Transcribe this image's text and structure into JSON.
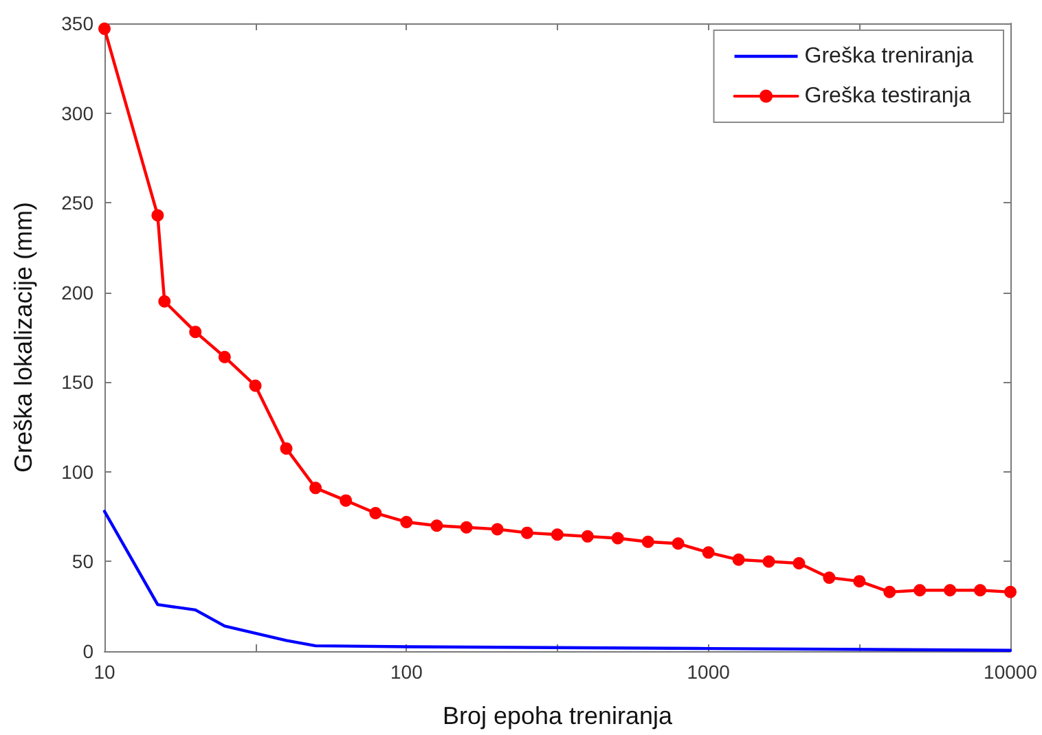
{
  "chart_data": {
    "type": "line",
    "xlabel": "Broj epoha treniranja",
    "ylabel": "Greška lokalizacije (mm)",
    "log": "x",
    "line_style": "solid",
    "legend": "top right",
    "xlim": [
      10,
      10000
    ],
    "xticks": [
      10,
      {
        "value": 31.6,
        "label": null
      },
      100,
      {
        "value": 316,
        "label": null
      },
      1000,
      {
        "value": 3162,
        "label": null
      },
      10000
    ],
    "ylim": [
      0,
      350
    ],
    "yticks": [
      0,
      50,
      100,
      150,
      200,
      250,
      300,
      350
    ],
    "series": [
      {
        "name": "Greška treniranja",
        "color": "#0000ff",
        "marker": "none",
        "x": [
          10,
          15,
          20,
          25,
          31.6,
          40,
          50,
          100,
          1000,
          10000
        ],
        "values": [
          78,
          26,
          23,
          14,
          10,
          6,
          3,
          2.5,
          1.5,
          0.5
        ]
      },
      {
        "name": "Greška testiranja",
        "color": "#ff0000",
        "marker": "circle",
        "x": [
          10,
          15,
          15.8,
          20,
          25,
          31.6,
          40,
          50,
          63,
          79,
          100,
          126,
          158,
          200,
          251,
          316,
          398,
          501,
          631,
          794,
          1000,
          1259,
          1585,
          1995,
          2512,
          3162,
          3981,
          5012,
          6310,
          7943,
          10000
        ],
        "values": [
          347,
          243,
          195,
          178,
          164,
          148,
          113,
          91,
          84,
          77,
          72,
          70,
          69,
          68,
          66,
          65,
          64,
          63,
          61,
          60,
          55,
          51,
          50,
          49,
          41,
          39,
          33,
          34,
          34,
          34,
          33
        ]
      }
    ]
  }
}
